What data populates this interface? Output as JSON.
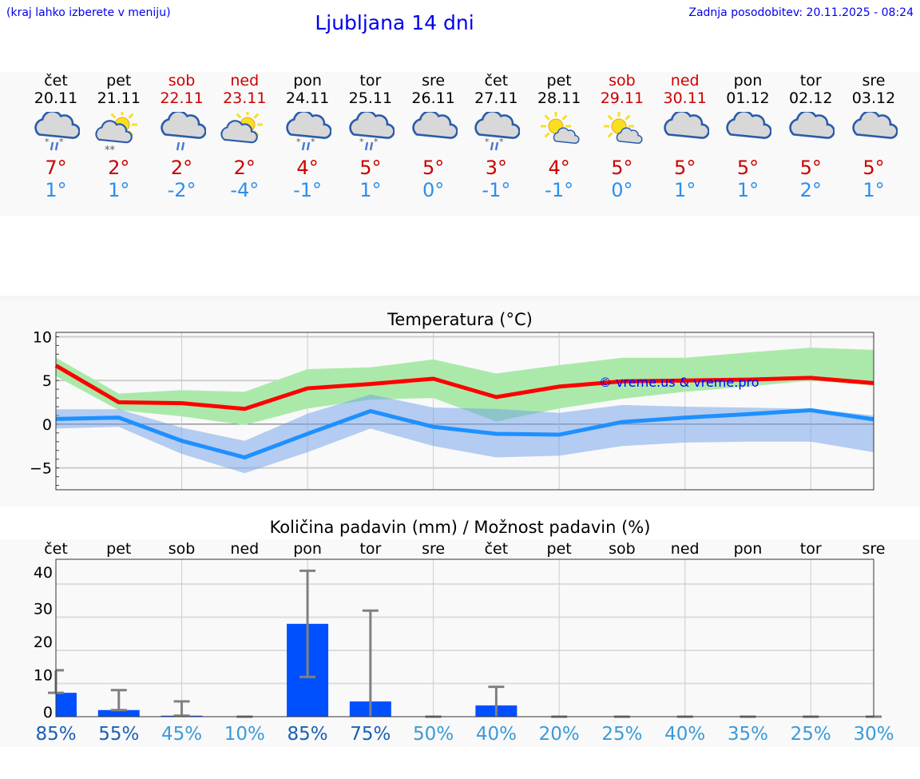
{
  "header": {
    "hint": "(kraj lahko izberete v meniju)",
    "title": "Ljubljana 14 dni",
    "updated": "Zadnja posodobitev: 20.11.2025 - 08:24"
  },
  "colors": {
    "max": "#cc0000",
    "min": "#2a8ff0",
    "weekend": "#cc0000",
    "bar": "#0050ff",
    "max_band": "#abe9ab",
    "min_band": "#adc8f2",
    "overlap": "#7cc7a8"
  },
  "days": [
    {
      "name": "čet",
      "date": "20.11",
      "icon": "cloud-sleet",
      "max": "7°",
      "min": "1°",
      "weekend": false
    },
    {
      "name": "pet",
      "date": "21.11",
      "icon": "sun-cloud-snow",
      "max": "2°",
      "min": "1°",
      "weekend": false
    },
    {
      "name": "sob",
      "date": "22.11",
      "icon": "cloud-rain",
      "max": "2°",
      "min": "-2°",
      "weekend": true
    },
    {
      "name": "ned",
      "date": "23.11",
      "icon": "sun-cloud",
      "max": "2°",
      "min": "-4°",
      "weekend": true
    },
    {
      "name": "pon",
      "date": "24.11",
      "icon": "cloud-sleet",
      "max": "4°",
      "min": "-1°",
      "weekend": false
    },
    {
      "name": "tor",
      "date": "25.11",
      "icon": "cloud-sleet",
      "max": "5°",
      "min": "1°",
      "weekend": false
    },
    {
      "name": "sre",
      "date": "26.11",
      "icon": "cloudy",
      "max": "5°",
      "min": "0°",
      "weekend": false
    },
    {
      "name": "čet",
      "date": "27.11",
      "icon": "cloud-sleet",
      "max": "3°",
      "min": "-1°",
      "weekend": false
    },
    {
      "name": "pet",
      "date": "28.11",
      "icon": "sun-small-cloud",
      "max": "4°",
      "min": "-1°",
      "weekend": false
    },
    {
      "name": "sob",
      "date": "29.11",
      "icon": "sun-small-cloud",
      "max": "5°",
      "min": "0°",
      "weekend": true
    },
    {
      "name": "ned",
      "date": "30.11",
      "icon": "cloudy",
      "max": "5°",
      "min": "1°",
      "weekend": true
    },
    {
      "name": "pon",
      "date": "01.12",
      "icon": "cloudy",
      "max": "5°",
      "min": "1°",
      "weekend": false
    },
    {
      "name": "tor",
      "date": "02.12",
      "icon": "cloudy",
      "max": "5°",
      "min": "2°",
      "weekend": false
    },
    {
      "name": "sre",
      "date": "03.12",
      "icon": "cloudy",
      "max": "5°",
      "min": "1°",
      "weekend": false
    }
  ],
  "chart_data": [
    {
      "type": "line",
      "title": "Temperatura (°C)",
      "ylim": [
        -7.5,
        10.5
      ],
      "yticks": [
        "10",
        "5",
        "0",
        "−5"
      ],
      "ytick_values": [
        10,
        5,
        0,
        -5
      ],
      "grid": true,
      "watermark": "© vreme.us & vreme.pro",
      "series": [
        {
          "values": [
            6.7,
            2.5,
            2.4,
            1.75,
            4.1,
            4.6,
            5.2,
            3.1,
            4.3,
            4.9,
            5.0,
            5.1,
            5.3,
            4.7
          ],
          "band_high": [
            7.6,
            3.5,
            3.9,
            3.7,
            6.3,
            6.5,
            7.4,
            5.8,
            6.75,
            7.6,
            7.6,
            8.2,
            8.75,
            8.5
          ],
          "band_low": [
            5.5,
            1.6,
            0.9,
            -0.1,
            1.8,
            2.8,
            3.0,
            0.3,
            1.8,
            2.9,
            3.7,
            4.3,
            5.0,
            4.4
          ]
        },
        {
          "values": [
            0.6,
            0.75,
            -1.9,
            -3.8,
            -1.1,
            1.5,
            -0.3,
            -1.1,
            -1.2,
            0.25,
            0.75,
            1.15,
            1.6,
            0.55
          ],
          "band_high": [
            1.7,
            1.7,
            -0.4,
            -1.9,
            1.2,
            3.4,
            1.9,
            1.75,
            1.3,
            2.2,
            2.0,
            1.9,
            1.75,
            1.0
          ],
          "band_low": [
            -0.5,
            -0.3,
            -3.4,
            -5.6,
            -3.2,
            -0.5,
            -2.5,
            -3.8,
            -3.6,
            -2.5,
            -2.1,
            -2.0,
            -2.0,
            -3.2
          ]
        }
      ]
    },
    {
      "type": "bar",
      "title": "Količina padavin (mm) / Možnost padavin (%)",
      "ylim": [
        0,
        40
      ],
      "yticks": [
        "40",
        "30",
        "20",
        "10",
        "0"
      ],
      "ytick_values": [
        40,
        30,
        20,
        10,
        0
      ],
      "grid": true,
      "categories": [
        "čet",
        "pet",
        "sob",
        "ned",
        "pon",
        "tor",
        "sre",
        "čet",
        "pet",
        "sob",
        "ned",
        "pon",
        "tor",
        "sre"
      ],
      "values": [
        7.2,
        2,
        0.3,
        0,
        28,
        4.6,
        0,
        3.4,
        0,
        0,
        0,
        0,
        0,
        0
      ],
      "error_low": [
        7.2,
        2,
        0.3,
        0,
        12,
        0,
        0,
        0,
        0,
        0,
        0,
        0,
        0,
        0
      ],
      "error_high": [
        14,
        8,
        4.6,
        0,
        44,
        32,
        0,
        9,
        0,
        0,
        0,
        0,
        0,
        0
      ],
      "probability": [
        "85%",
        "55%",
        "45%",
        "10%",
        "85%",
        "75%",
        "50%",
        "40%",
        "20%",
        "25%",
        "40%",
        "35%",
        "25%",
        "30%"
      ]
    }
  ]
}
